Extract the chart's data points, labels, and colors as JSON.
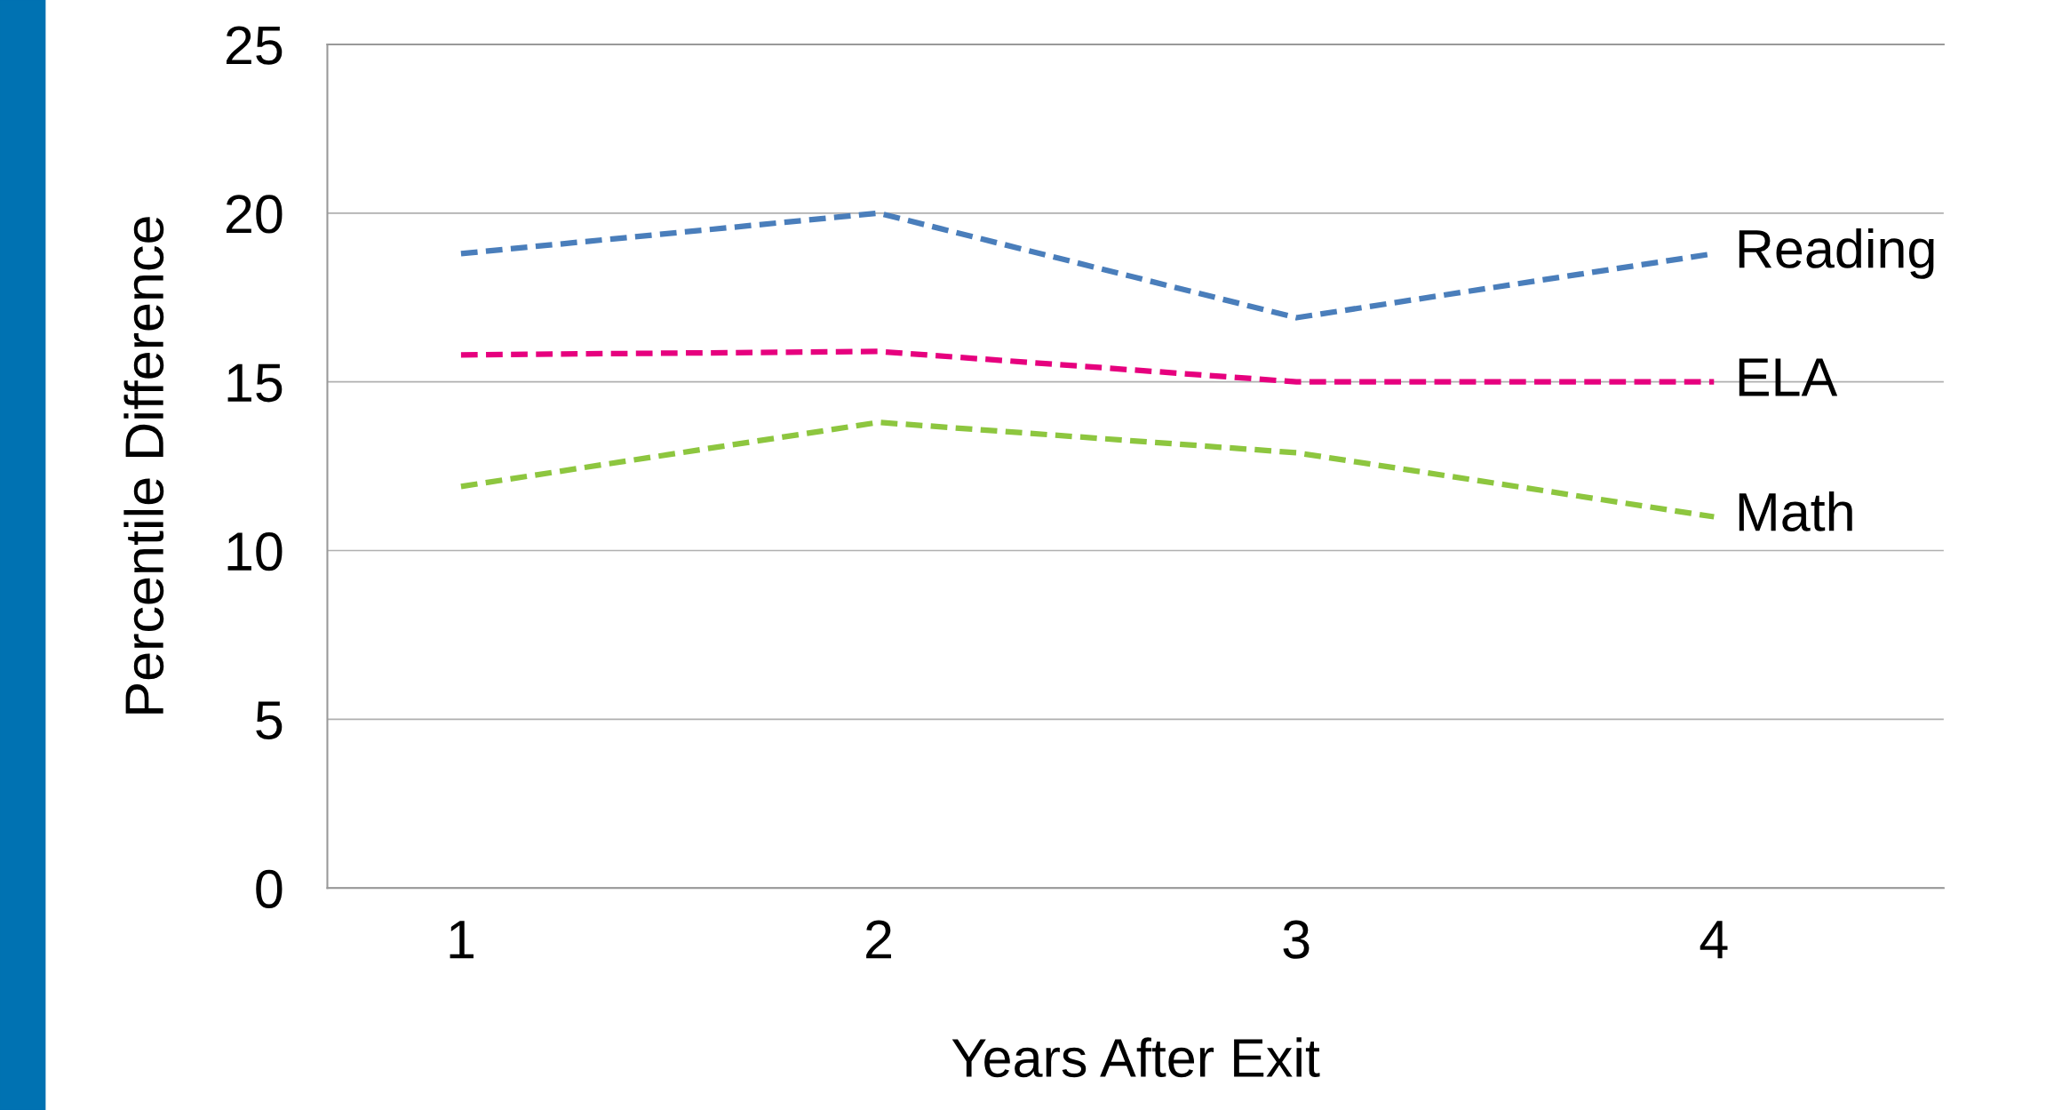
{
  "chart_data": {
    "type": "line",
    "xlabel": "Years After Exit",
    "ylabel": "Percentile Difference",
    "categories": [
      "1",
      "2",
      "3",
      "4"
    ],
    "series": [
      {
        "name": "Reading",
        "color": "#4a7ebb",
        "values": [
          18.8,
          20,
          16.9,
          18.8
        ]
      },
      {
        "name": "ELA",
        "color": "#e6007e",
        "values": [
          15.8,
          15.9,
          15,
          15
        ]
      },
      {
        "name": "Math",
        "color": "#8dc63f",
        "values": [
          11.9,
          13.8,
          12.9,
          11
        ]
      }
    ],
    "ylim": [
      0,
      25
    ],
    "yticks": [
      0,
      5,
      10,
      15,
      20,
      25
    ],
    "grid": "y",
    "legend": false,
    "line_style": "dashed",
    "marker": "none"
  }
}
